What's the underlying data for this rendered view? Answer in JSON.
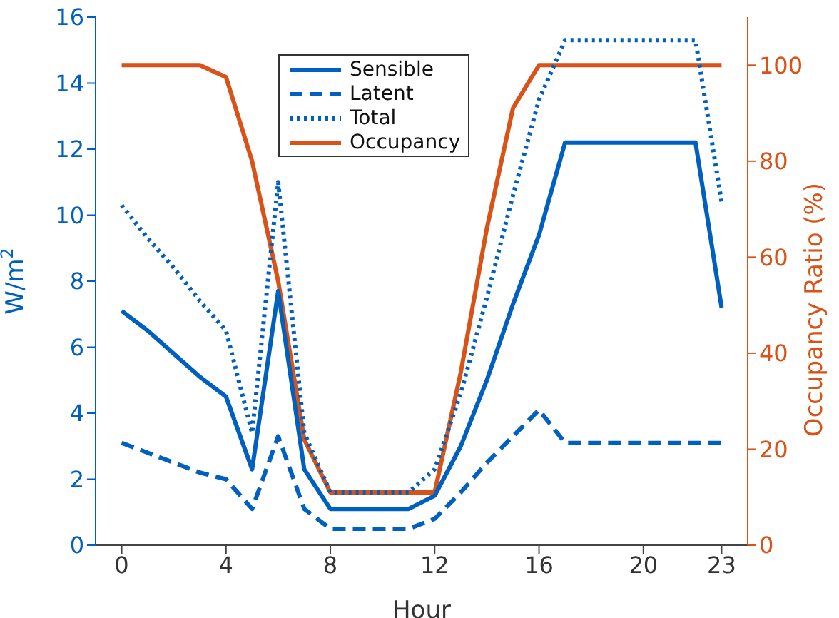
{
  "chart_data": {
    "type": "line",
    "xlabel": "Hour",
    "ylabel": "W/m$^{2}$",
    "y2label": "Occupancy Ratio (%)",
    "x": [
      0,
      1,
      2,
      3,
      4,
      5,
      6,
      7,
      8,
      9,
      10,
      11,
      12,
      13,
      14,
      15,
      16,
      17,
      18,
      19,
      20,
      21,
      22,
      23
    ],
    "xlim": [
      -1,
      24
    ],
    "xticks": [
      0,
      4,
      8,
      12,
      16,
      20,
      23
    ],
    "ylim": [
      0,
      16
    ],
    "yticks": [
      0,
      2,
      4,
      6,
      8,
      10,
      12,
      14,
      16
    ],
    "y2lim": [
      0,
      110
    ],
    "y2ticks": [
      0,
      20,
      40,
      60,
      80,
      100
    ],
    "legend": "top",
    "marker": "none",
    "series": [
      {
        "name": "Sensible",
        "color": "#0060bf",
        "line_style": "solid",
        "values": [
          7.1,
          6.5,
          5.8,
          5.1,
          4.5,
          2.3,
          7.7,
          2.3,
          1.1,
          1.1,
          1.1,
          1.1,
          1.5,
          3.0,
          5.0,
          7.3,
          9.4,
          12.2,
          12.2,
          12.2,
          12.2,
          12.2,
          12.2,
          7.2
        ]
      },
      {
        "name": "Latent",
        "color": "#0060bf",
        "line_style": "dashed",
        "values": [
          3.1,
          2.8,
          2.5,
          2.2,
          2.0,
          1.1,
          3.3,
          1.1,
          0.5,
          0.5,
          0.5,
          0.5,
          0.8,
          1.6,
          2.5,
          3.3,
          4.1,
          3.1,
          3.1,
          3.1,
          3.1,
          3.1,
          3.1,
          3.1
        ]
      },
      {
        "name": "Total",
        "color": "#0060bf",
        "line_style": "dotted",
        "values": [
          10.3,
          9.3,
          8.4,
          7.4,
          6.5,
          3.4,
          11.0,
          3.4,
          1.6,
          1.6,
          1.6,
          1.6,
          2.3,
          4.6,
          7.5,
          10.6,
          13.5,
          15.3,
          15.3,
          15.3,
          15.3,
          15.3,
          15.3,
          10.4
        ]
      },
      {
        "name": "Occupancy",
        "color": "#d95319",
        "line_style": "solid",
        "axis": "y2",
        "values": [
          100,
          100,
          100,
          100,
          97.5,
          80,
          55,
          22,
          11,
          11,
          11,
          11,
          11,
          36,
          66,
          91,
          100,
          100,
          100,
          100,
          100,
          100,
          100,
          100
        ]
      }
    ]
  }
}
